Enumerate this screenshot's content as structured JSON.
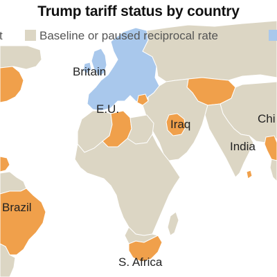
{
  "title": "Trump tariff status by country",
  "legend": [
    {
      "label": "t",
      "color": "#f0a04b"
    },
    {
      "label": "Baseline or paused reciprocal rate",
      "color": "#dcd6c4"
    },
    {
      "label": "",
      "color": "#a9c8ec"
    }
  ],
  "colors": {
    "ocean": "#ffffff",
    "land": "#dcd6c4",
    "orange": "#f0a04b",
    "blue": "#a9c8ec",
    "border": "#ffffff"
  },
  "labels": {
    "britain": "Britain",
    "eu": "E.U.",
    "iraq": "Iraq",
    "china": "Chi",
    "india": "India",
    "brazil": "Brazil",
    "south_africa": "S. Africa"
  }
}
